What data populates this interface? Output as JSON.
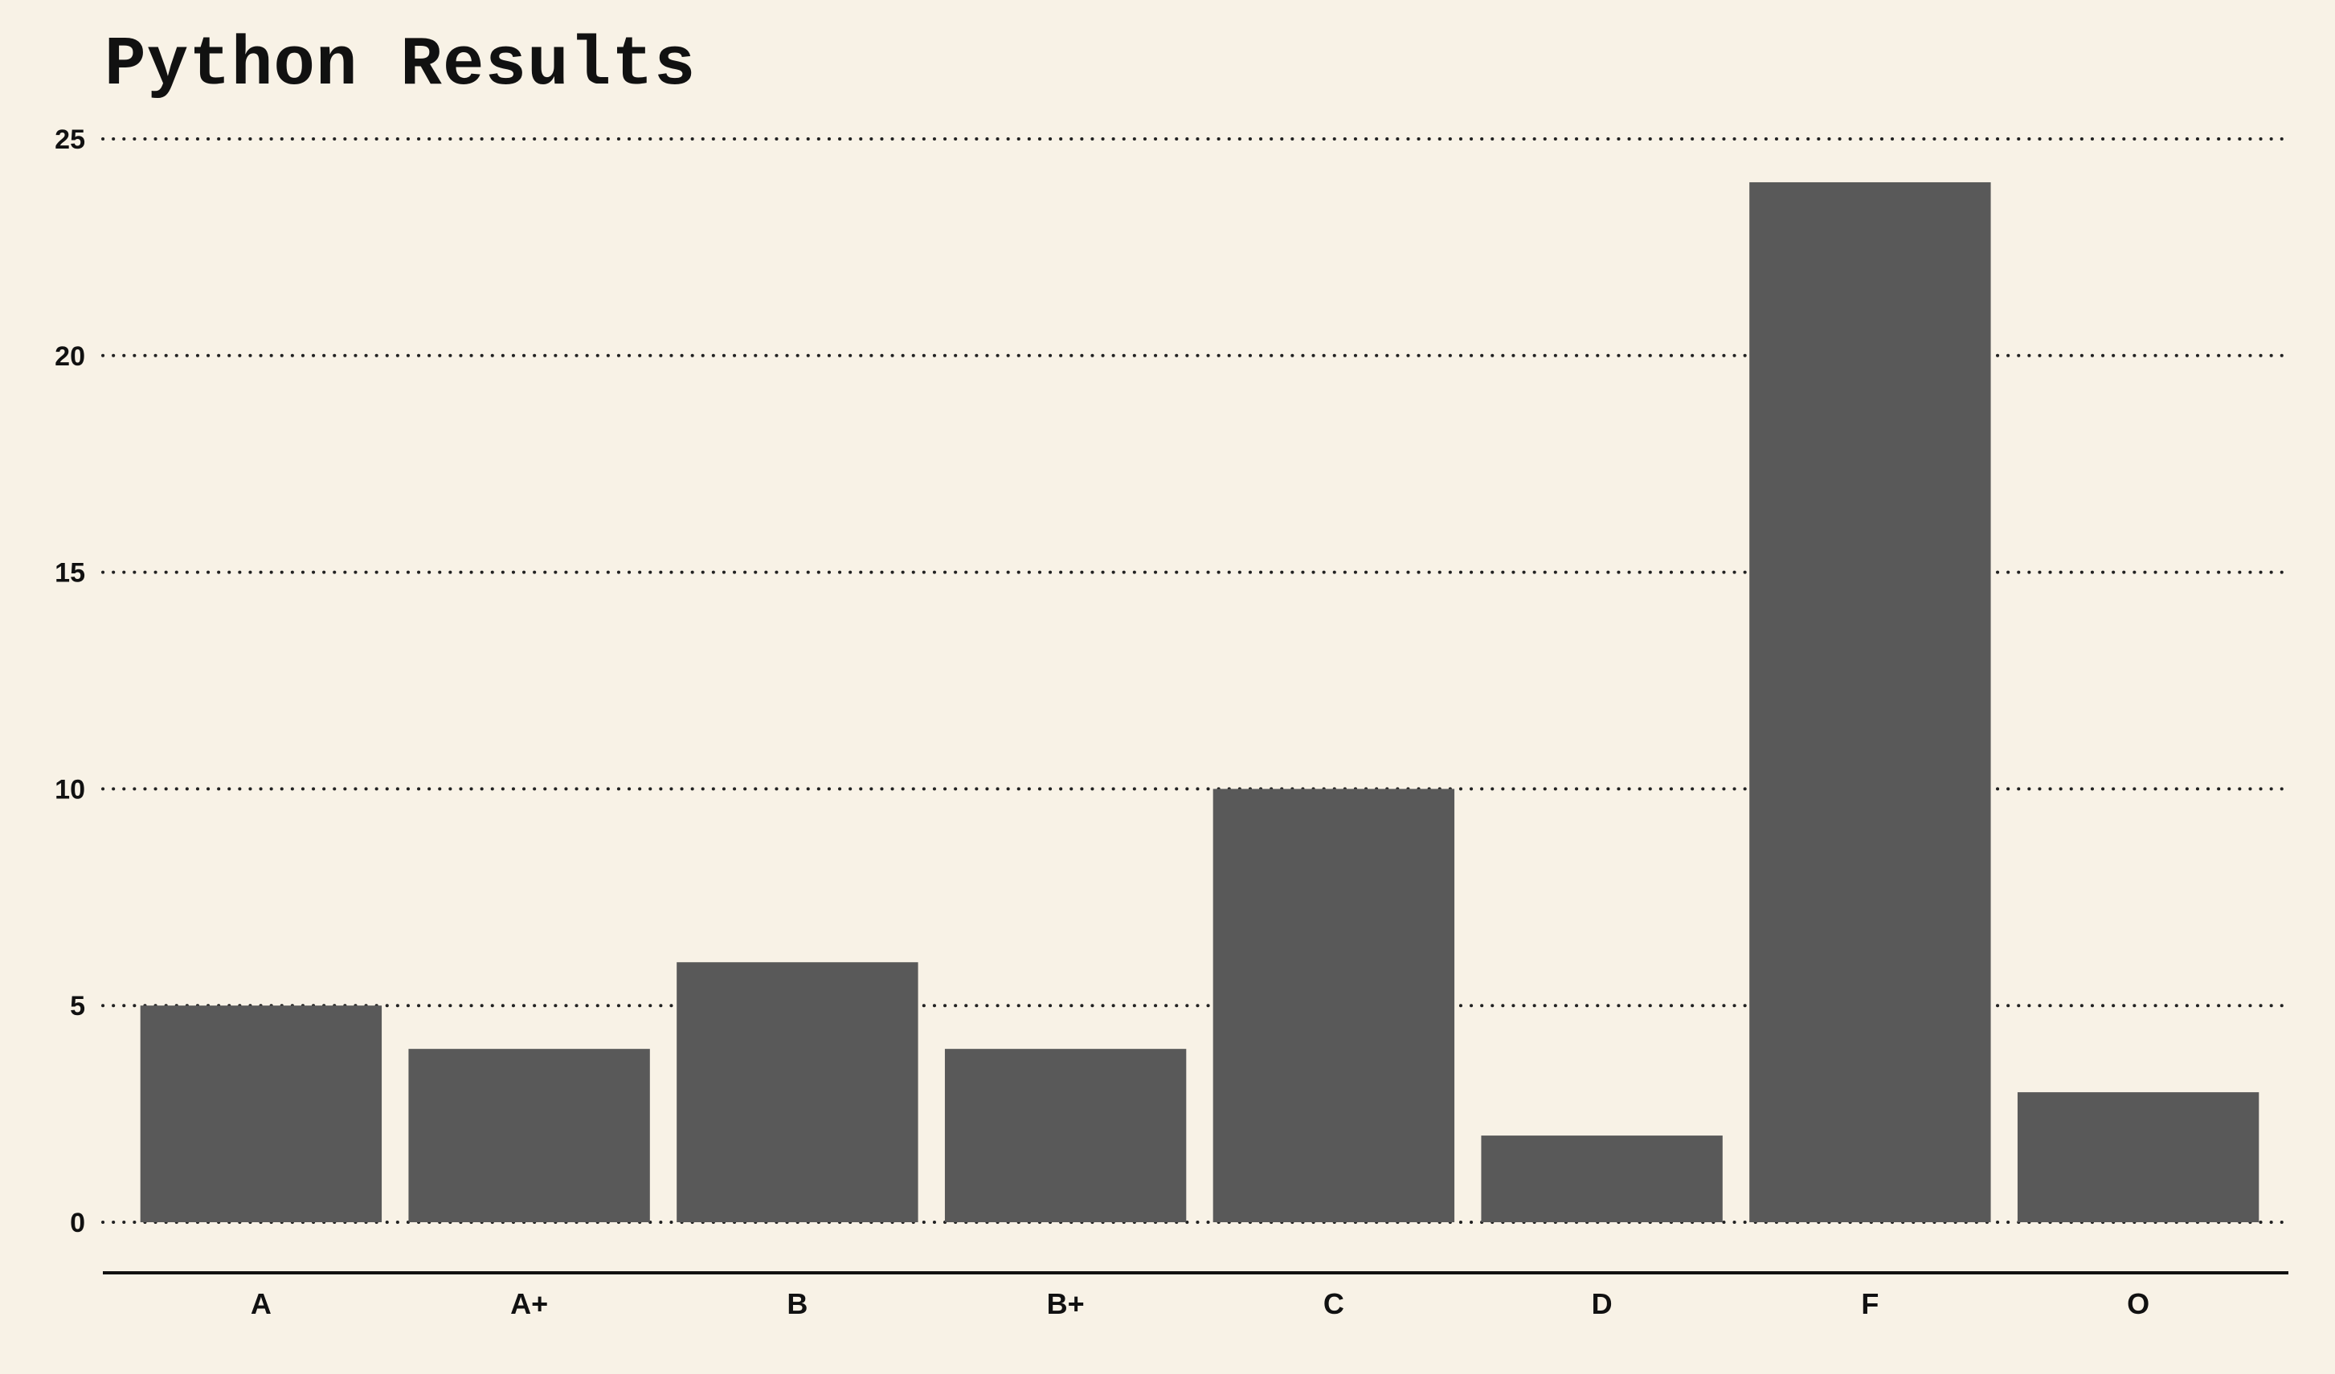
{
  "chart_data": {
    "type": "bar",
    "title": "Python Results",
    "xlabel": "",
    "ylabel": "",
    "categories": [
      "A",
      "A+",
      "B",
      "B+",
      "C",
      "D",
      "F",
      "O"
    ],
    "values": [
      5,
      4,
      6,
      4,
      10,
      2,
      24,
      3
    ],
    "ylim": [
      0,
      25
    ],
    "yticks": [
      0,
      5,
      10,
      15,
      20,
      25
    ],
    "ytick_labels": [
      "0",
      "5",
      "10",
      "15",
      "20",
      "25"
    ],
    "grid": "horizontal-dotted",
    "legend": "none",
    "colors": {
      "bar": "#595959",
      "background": "#f8f2e6",
      "grid": "#222222",
      "text": "#111111"
    }
  }
}
